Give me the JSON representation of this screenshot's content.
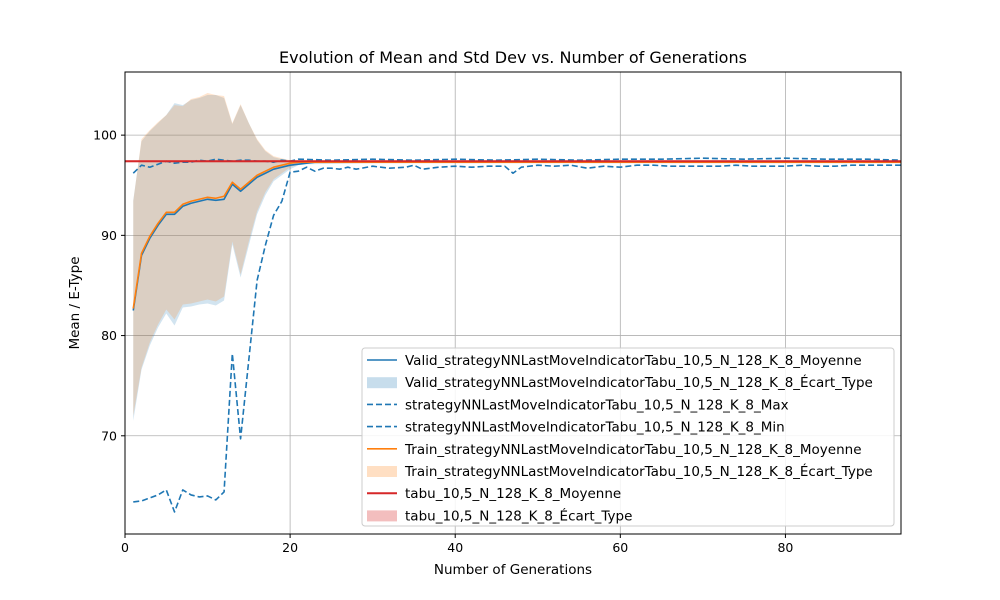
{
  "chart_data": {
    "type": "line",
    "title": "Evolution of Mean and Std Dev vs. Number of Generations",
    "xlabel": "Number of Generations",
    "ylabel": "Mean / E-Type",
    "xlim": [
      0,
      94
    ],
    "ylim": [
      60.2,
      106.3
    ],
    "xticks": [
      0,
      20,
      40,
      60,
      80
    ],
    "yticks": [
      70,
      80,
      90,
      100
    ],
    "grid": true,
    "legend_position": "lower-right",
    "series": [
      {
        "name": "Valid_strategyNNLastMoveIndicatorTabu_10,5_N_128_K_8_Moyenne",
        "kind": "line",
        "color": "#1f77b4",
        "x": [
          1,
          2,
          3,
          4,
          5,
          6,
          7,
          8,
          9,
          10,
          11,
          12,
          13,
          14,
          15,
          16,
          17,
          18,
          19,
          20,
          21,
          22,
          23,
          24,
          25,
          26,
          27,
          28,
          29,
          30,
          31,
          32,
          33,
          34,
          35,
          36,
          37,
          38,
          39,
          40,
          41,
          42,
          43,
          44,
          45,
          46,
          47,
          48,
          49,
          50,
          51,
          52,
          53,
          54,
          55,
          56,
          57,
          58,
          59,
          60,
          61,
          62,
          63,
          64,
          65,
          66,
          67,
          68,
          69,
          70,
          71,
          72,
          73,
          74,
          75,
          76,
          77,
          78,
          79,
          80,
          81,
          82,
          83,
          84,
          85,
          86,
          87,
          88,
          89,
          90,
          91,
          92,
          93,
          94
        ],
        "values": [
          82.5,
          88.0,
          89.7,
          91.0,
          92.1,
          92.1,
          92.9,
          93.2,
          93.4,
          93.6,
          93.5,
          93.6,
          95.1,
          94.4,
          95.1,
          95.8,
          96.2,
          96.6,
          96.8,
          97.0,
          97.1,
          97.2,
          97.3,
          97.3,
          97.3,
          97.3,
          97.3,
          97.3,
          97.3,
          97.3,
          97.3,
          97.3,
          97.3,
          97.3,
          97.3,
          97.3,
          97.3,
          97.3,
          97.3,
          97.3,
          97.3,
          97.3,
          97.3,
          97.3,
          97.3,
          97.3,
          97.3,
          97.3,
          97.3,
          97.3,
          97.3,
          97.3,
          97.3,
          97.3,
          97.3,
          97.3,
          97.3,
          97.3,
          97.3,
          97.3,
          97.3,
          97.3,
          97.3,
          97.3,
          97.3,
          97.3,
          97.3,
          97.3,
          97.3,
          97.3,
          97.3,
          97.3,
          97.3,
          97.3,
          97.3,
          97.3,
          97.3,
          97.3,
          97.3,
          97.3,
          97.3,
          97.3,
          97.3,
          97.3,
          97.3,
          97.3,
          97.3,
          97.3,
          97.3,
          97.3,
          97.3,
          97.3,
          97.3,
          97.3
        ]
      },
      {
        "name": "Valid_strategyNNLastMoveIndicatorTabu_10,5_N_128_K_8_Écart_Type",
        "kind": "band",
        "color": "#1f77b4",
        "x": [
          1,
          2,
          3,
          4,
          5,
          6,
          7,
          8,
          9,
          10,
          11,
          12,
          13,
          14,
          15,
          16,
          17,
          18,
          19,
          20,
          21,
          22,
          30,
          40,
          50,
          60,
          70,
          80,
          94
        ],
        "lower": [
          71.5,
          76.6,
          79.0,
          80.8,
          82.2,
          81.0,
          82.8,
          82.9,
          83.1,
          83.2,
          83.0,
          83.5,
          89.1,
          85.8,
          89.0,
          92.1,
          94.0,
          95.4,
          96.0,
          96.6,
          97.0,
          97.1,
          97.2,
          97.2,
          97.2,
          97.2,
          97.2,
          97.2,
          97.2
        ],
        "upper": [
          93.5,
          99.4,
          100.4,
          101.2,
          102.0,
          103.2,
          103.0,
          103.5,
          103.7,
          104.0,
          104.0,
          103.7,
          101.1,
          103.0,
          101.2,
          99.5,
          98.4,
          97.8,
          97.6,
          97.4,
          97.3,
          97.3,
          97.4,
          97.4,
          97.4,
          97.4,
          97.4,
          97.4,
          97.4
        ]
      },
      {
        "name": "strategyNNLastMoveIndicatorTabu_10,5_N_128_K_8_Max",
        "kind": "dashed",
        "color": "#1f77b4",
        "x": [
          1,
          2,
          3,
          4,
          5,
          6,
          7,
          8,
          9,
          10,
          11,
          12,
          13,
          14,
          15,
          16,
          17,
          18,
          19,
          20,
          21,
          25,
          30,
          35,
          40,
          45,
          50,
          55,
          60,
          65,
          70,
          75,
          80,
          85,
          90,
          94
        ],
        "values": [
          96.2,
          97.0,
          96.8,
          97.1,
          97.4,
          97.2,
          97.3,
          97.3,
          97.5,
          97.4,
          97.6,
          97.5,
          97.4,
          97.5,
          97.5,
          97.4,
          97.4,
          97.3,
          97.5,
          97.4,
          97.6,
          97.5,
          97.6,
          97.5,
          97.6,
          97.5,
          97.6,
          97.5,
          97.6,
          97.6,
          97.7,
          97.6,
          97.7,
          97.6,
          97.6,
          97.5
        ]
      },
      {
        "name": "strategyNNLastMoveIndicatorTabu_10,5_N_128_K_8_Min",
        "kind": "dashed",
        "color": "#1f77b4",
        "x": [
          1,
          2,
          3,
          4,
          5,
          6,
          7,
          8,
          9,
          10,
          11,
          12,
          13,
          14,
          15,
          16,
          17,
          18,
          19,
          20,
          21,
          22,
          23,
          24,
          25,
          26,
          27,
          28,
          30,
          32,
          34,
          35,
          36,
          38,
          40,
          42,
          44,
          46,
          47,
          48,
          50,
          52,
          54,
          56,
          58,
          60,
          62,
          64,
          66,
          68,
          70,
          72,
          74,
          76,
          78,
          80,
          82,
          84,
          86,
          88,
          90,
          92,
          94
        ],
        "values": [
          63.4,
          63.5,
          63.8,
          64.1,
          64.6,
          62.4,
          64.6,
          64.1,
          63.9,
          64.0,
          63.6,
          64.4,
          78.2,
          69.7,
          77.6,
          85.5,
          89.0,
          92.0,
          93.4,
          96.3,
          96.4,
          96.8,
          96.4,
          96.7,
          96.7,
          96.6,
          96.8,
          96.6,
          96.9,
          96.7,
          96.8,
          97.0,
          96.6,
          96.8,
          96.9,
          96.8,
          96.9,
          96.9,
          96.2,
          96.8,
          97.0,
          96.9,
          97.0,
          96.7,
          96.9,
          96.8,
          97.0,
          97.0,
          96.9,
          96.9,
          96.9,
          96.9,
          97.0,
          96.9,
          96.9,
          96.9,
          97.0,
          96.9,
          96.9,
          97.0,
          97.0,
          97.0,
          97.0
        ]
      },
      {
        "name": "Train_strategyNNLastMoveIndicatorTabu_10,5_N_128_K_8_Moyenne",
        "kind": "line",
        "color": "#ff7f0e",
        "x": [
          1,
          2,
          3,
          4,
          5,
          6,
          7,
          8,
          9,
          10,
          11,
          12,
          13,
          14,
          15,
          16,
          17,
          18,
          19,
          20,
          21,
          22,
          30,
          40,
          50,
          60,
          70,
          80,
          94
        ],
        "values": [
          82.7,
          88.2,
          89.9,
          91.2,
          92.3,
          92.3,
          93.1,
          93.4,
          93.6,
          93.8,
          93.7,
          93.9,
          95.3,
          94.6,
          95.3,
          96.0,
          96.4,
          96.8,
          97.0,
          97.2,
          97.3,
          97.3,
          97.3,
          97.3,
          97.3,
          97.3,
          97.3,
          97.3,
          97.3
        ]
      },
      {
        "name": "Train_strategyNNLastMoveIndicatorTabu_10,5_N_128_K_8_Écart_Type",
        "kind": "band",
        "color": "#ff7f0e",
        "x": [
          1,
          2,
          3,
          4,
          5,
          6,
          7,
          8,
          9,
          10,
          11,
          12,
          13,
          14,
          15,
          16,
          17,
          18,
          19,
          20,
          21,
          22,
          30,
          40,
          50,
          60,
          70,
          80,
          94
        ],
        "lower": [
          72.0,
          76.8,
          79.3,
          81.1,
          82.6,
          81.6,
          83.1,
          83.2,
          83.4,
          83.6,
          83.4,
          83.9,
          89.4,
          86.1,
          89.4,
          92.4,
          94.3,
          95.6,
          96.2,
          96.8,
          97.1,
          97.2,
          97.2,
          97.2,
          97.2,
          97.2,
          97.2,
          97.2,
          97.2
        ],
        "upper": [
          93.4,
          99.6,
          100.5,
          101.3,
          102.0,
          103.0,
          102.9,
          103.6,
          103.8,
          104.2,
          104.0,
          103.9,
          101.2,
          103.1,
          101.2,
          99.6,
          98.5,
          97.9,
          97.7,
          97.5,
          97.4,
          97.4,
          97.4,
          97.4,
          97.4,
          97.4,
          97.4,
          97.4,
          97.4
        ]
      },
      {
        "name": "tabu_10,5_N_128_K_8_Moyenne",
        "kind": "hline",
        "color": "#d62728",
        "x": [
          0,
          94
        ],
        "values": [
          97.4,
          97.4
        ]
      },
      {
        "name": "tabu_10,5_N_128_K_8_Écart_Type",
        "kind": "band",
        "color": "#d62728",
        "x": [
          0,
          94
        ],
        "lower": [
          97.3,
          97.3
        ],
        "upper": [
          97.5,
          97.5
        ]
      }
    ]
  }
}
